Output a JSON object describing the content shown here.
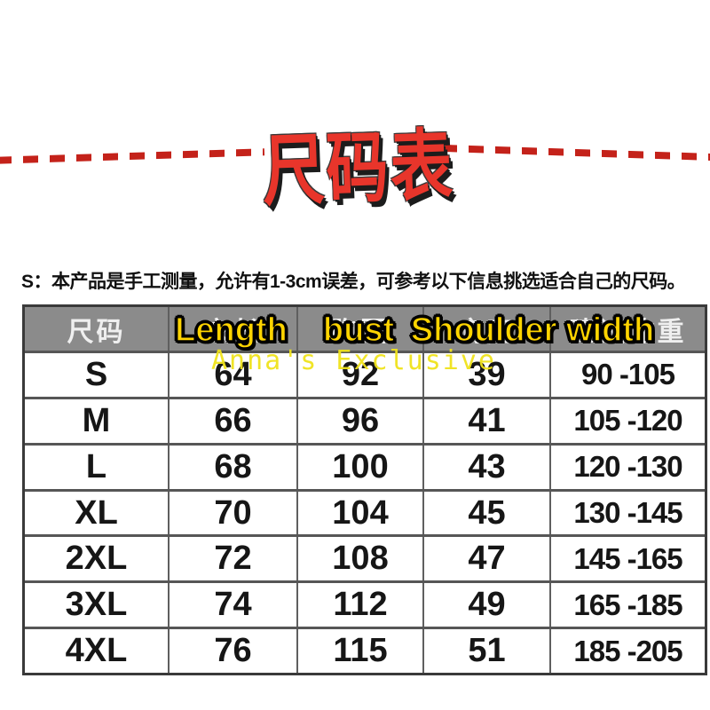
{
  "title": {
    "text": "尺码表"
  },
  "note": {
    "text": "S：本产品是手工测量，允许有1-3cm误差，可参考以下信息挑选适合自己的尺码。"
  },
  "watermark": {
    "text": "Anna's Exclusive"
  },
  "overlays": {
    "length": "Length",
    "bust": "bust",
    "shoulder": "Shoulder width"
  },
  "colors": {
    "title_red": "#e8352b",
    "dash_red": "#c4221a",
    "header_gray": "#8b8b8b",
    "overlay_yellow": "#ffd400",
    "watermark_yellow": "#f0e31c",
    "text_black": "#161616"
  },
  "table": {
    "headers": [
      "尺码",
      "衣长",
      "胸围",
      "肩宽",
      "建议体重"
    ],
    "rows": [
      {
        "size": "S",
        "length": "64",
        "bust": "92",
        "shoulder": "39",
        "weight": "90 -105"
      },
      {
        "size": "M",
        "length": "66",
        "bust": "96",
        "shoulder": "41",
        "weight": "105 -120"
      },
      {
        "size": "L",
        "length": "68",
        "bust": "100",
        "shoulder": "43",
        "weight": "120 -130"
      },
      {
        "size": "XL",
        "length": "70",
        "bust": "104",
        "shoulder": "45",
        "weight": "130 -145"
      },
      {
        "size": "2XL",
        "length": "72",
        "bust": "108",
        "shoulder": "47",
        "weight": "145 -165"
      },
      {
        "size": "3XL",
        "length": "74",
        "bust": "112",
        "shoulder": "49",
        "weight": "165 -185"
      },
      {
        "size": "4XL",
        "length": "76",
        "bust": "115",
        "shoulder": "51",
        "weight": "185 -205"
      }
    ]
  },
  "chart_data": {
    "type": "table",
    "title": "尺码表",
    "note": "S：本产品是手工测量，允许有1-3cm误差，可参考以下信息挑选适合自己的尺码。",
    "columns": [
      "尺码",
      "衣长",
      "胸围",
      "肩宽",
      "建议体重"
    ],
    "overlay_labels": [
      "Length",
      "bust",
      "Shoulder width"
    ],
    "watermark": "Anna's Exclusive",
    "rows": [
      [
        "S",
        64,
        92,
        39,
        "90-105"
      ],
      [
        "M",
        66,
        96,
        41,
        "105-120"
      ],
      [
        "L",
        68,
        100,
        43,
        "120-130"
      ],
      [
        "XL",
        70,
        104,
        45,
        "130-145"
      ],
      [
        "2XL",
        72,
        108,
        47,
        "145-165"
      ],
      [
        "3XL",
        74,
        112,
        49,
        "165-185"
      ],
      [
        "4XL",
        76,
        115,
        51,
        "185-205"
      ]
    ]
  }
}
